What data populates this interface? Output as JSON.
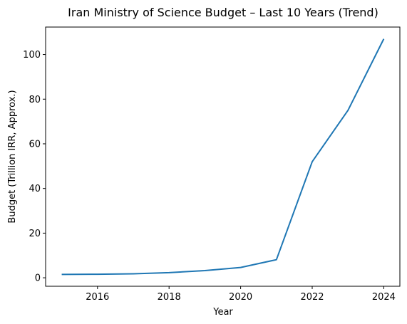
{
  "chart_data": {
    "type": "line",
    "title": "Iran Ministry of Science Budget – Last 10 Years (Trend)",
    "xlabel": "Year",
    "ylabel": "Budget (Trillion IRR, Approx.)",
    "xlim": [
      2014.55,
      2024.45
    ],
    "ylim": [
      -3.8,
      112.3
    ],
    "xticks": [
      2016,
      2018,
      2020,
      2022,
      2024
    ],
    "yticks": [
      0,
      20,
      40,
      60,
      80,
      100
    ],
    "grid": false,
    "series": [
      {
        "color": "#1f77b4",
        "x": [
          2015,
          2016,
          2017,
          2018,
          2019,
          2020,
          2021,
          2022,
          2023,
          2024
        ],
        "y": [
          1.5,
          1.6,
          1.8,
          2.3,
          3.2,
          4.6,
          8.1,
          52.0,
          75.0,
          107.0
        ]
      }
    ]
  }
}
